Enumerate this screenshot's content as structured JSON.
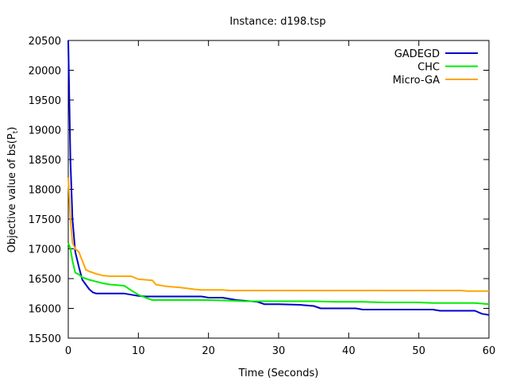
{
  "chart_data": {
    "type": "line",
    "title": "Instance: d198.tsp",
    "xlabel": "Time (Seconds)",
    "ylabel_main": "Objective value of bs(P",
    "ylabel_sub": "t",
    "ylabel_close": ")",
    "xlim": [
      0,
      60
    ],
    "ylim": [
      15500,
      20500
    ],
    "xticks": [
      0,
      10,
      20,
      30,
      40,
      50,
      60
    ],
    "yticks": [
      15500,
      16000,
      16500,
      17000,
      17500,
      18000,
      18500,
      19000,
      19500,
      20000,
      20500
    ],
    "legend_position": "top-right",
    "series": [
      {
        "name": "GADEGD",
        "color": "#0000cc",
        "x": [
          0,
          0.3,
          0.6,
          1,
          1.5,
          2,
          2.5,
          3,
          3.5,
          4,
          4.5,
          5,
          6,
          7,
          8,
          9,
          10,
          11,
          12,
          15,
          19,
          20,
          22,
          23,
          24,
          25,
          27,
          28,
          30,
          33,
          34,
          35,
          35.5,
          36,
          38,
          40,
          41,
          42,
          44,
          48,
          50,
          51,
          52,
          53,
          55,
          56,
          58,
          59,
          60
        ],
        "y": [
          20500,
          18500,
          17500,
          16950,
          16700,
          16480,
          16400,
          16320,
          16270,
          16250,
          16250,
          16250,
          16250,
          16250,
          16250,
          16230,
          16210,
          16200,
          16200,
          16200,
          16200,
          16180,
          16180,
          16160,
          16140,
          16130,
          16110,
          16070,
          16070,
          16060,
          16050,
          16040,
          16020,
          16000,
          16000,
          16000,
          16000,
          15980,
          15980,
          15980,
          15980,
          15980,
          15980,
          15960,
          15960,
          15960,
          15960,
          15910,
          15890
        ]
      },
      {
        "name": "CHC",
        "color": "#00ee00",
        "x": [
          0,
          0.3,
          0.6,
          1,
          1.5,
          2,
          3,
          4,
          5,
          6,
          7,
          8,
          9,
          10,
          11,
          12,
          15,
          20,
          23,
          25,
          30,
          35,
          38,
          42,
          45,
          50,
          52,
          55,
          58,
          59,
          60
        ],
        "y": [
          17100,
          17000,
          16800,
          16600,
          16570,
          16520,
          16480,
          16450,
          16420,
          16400,
          16390,
          16380,
          16300,
          16230,
          16180,
          16140,
          16140,
          16140,
          16130,
          16120,
          16120,
          16120,
          16110,
          16110,
          16100,
          16100,
          16090,
          16090,
          16090,
          16080,
          16070
        ]
      },
      {
        "name": "Micro-GA",
        "color": "#ffa500",
        "x": [
          0,
          0.3,
          0.6,
          1,
          1.5,
          2,
          2.5,
          3,
          4,
          5,
          6,
          8,
          9,
          10,
          11,
          12,
          12.5,
          14,
          15,
          16,
          18,
          19,
          20,
          22,
          23,
          25,
          30,
          40,
          50,
          56,
          57,
          60
        ],
        "y": [
          18200,
          17500,
          17100,
          17000,
          16950,
          16800,
          16650,
          16620,
          16580,
          16550,
          16540,
          16540,
          16540,
          16490,
          16480,
          16470,
          16400,
          16370,
          16360,
          16350,
          16320,
          16310,
          16310,
          16310,
          16300,
          16300,
          16300,
          16300,
          16300,
          16300,
          16290,
          16290
        ]
      }
    ]
  }
}
